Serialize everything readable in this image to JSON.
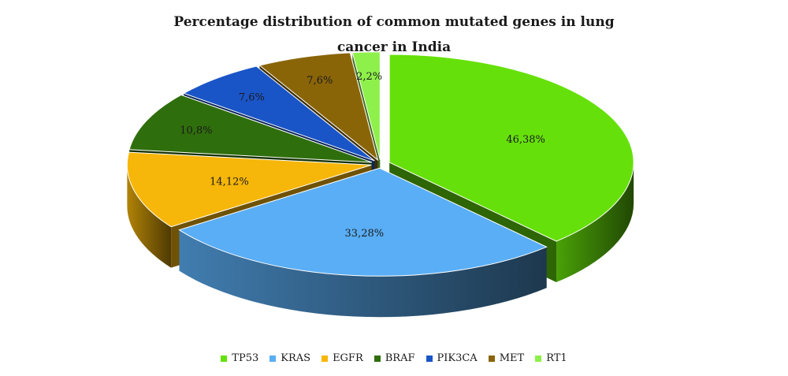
{
  "chart_data": {
    "type": "pie",
    "title": "Percentage distribution of common mutated genes in lung cancer in India",
    "categories": [
      "TP53",
      "KRAS",
      "EGFR",
      "BRAF",
      "PIK3CA",
      "MET",
      "RT1"
    ],
    "values": [
      46.38,
      33.28,
      14.12,
      10.8,
      7.6,
      7.6,
      2.2
    ],
    "labels": [
      "46,38%",
      "33,28%",
      "14,12%",
      "10,8%",
      "7,6%",
      "7,6%",
      "2,2%"
    ],
    "colors": [
      "#66e00a",
      "#5aaef5",
      "#f6b60a",
      "#2f6e0c",
      "#1a55c7",
      "#8a6508",
      "#8ef04a"
    ],
    "exploded": true,
    "style": "3d",
    "legend_position": "bottom"
  }
}
